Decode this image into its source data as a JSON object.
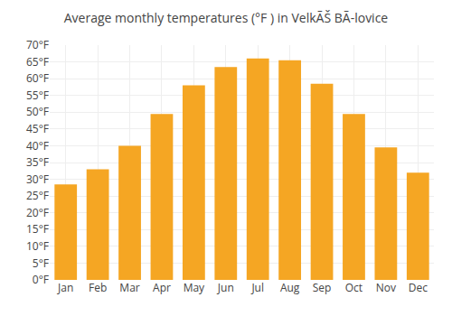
{
  "chart_data": {
    "type": "bar",
    "title": "Average monthly temperatures (°F ) in VelkÃŠ BÃ­-lovice",
    "categories": [
      "Jan",
      "Feb",
      "Mar",
      "Apr",
      "May",
      "Jun",
      "Jul",
      "Aug",
      "Sep",
      "Oct",
      "Nov",
      "Dec"
    ],
    "values": [
      28.5,
      33.0,
      40.0,
      49.5,
      58.0,
      63.5,
      66.0,
      65.5,
      58.5,
      49.5,
      39.5,
      32.0
    ],
    "color": "#F5A623",
    "ylim": [
      0,
      70
    ],
    "yticks": [
      {
        "value": 0,
        "label": "0°F"
      },
      {
        "value": 5,
        "label": "5°F"
      },
      {
        "value": 10,
        "label": "10°F"
      },
      {
        "value": 15,
        "label": "15°F"
      },
      {
        "value": 20,
        "label": "20°F"
      },
      {
        "value": 25,
        "label": "25°F"
      },
      {
        "value": 30,
        "label": "30°F"
      },
      {
        "value": 35,
        "label": "35°F"
      },
      {
        "value": 40,
        "label": "40°F"
      },
      {
        "value": 45,
        "label": "45°F"
      },
      {
        "value": 50,
        "label": "50°F"
      },
      {
        "value": 55,
        "label": "55°F"
      },
      {
        "value": 60,
        "label": "60°F"
      },
      {
        "value": 65,
        "label": "65°F"
      },
      {
        "value": 70,
        "label": "70°F"
      }
    ],
    "grid": true
  }
}
